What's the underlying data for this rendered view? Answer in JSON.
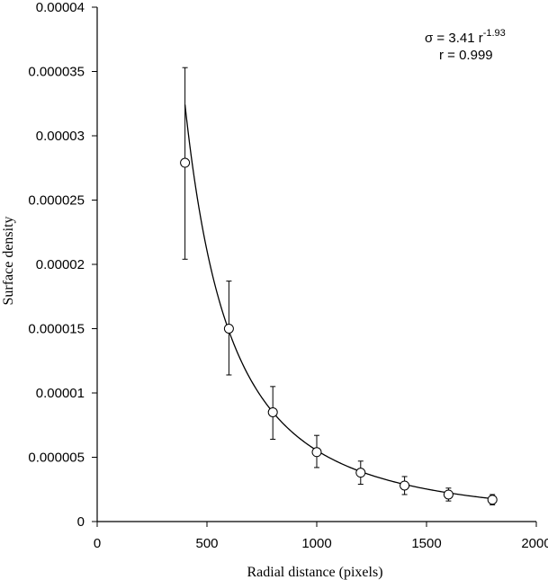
{
  "chart_data": {
    "type": "scatter",
    "title": "",
    "xlabel": "Radial distance (pixels)",
    "ylabel": "Surface density",
    "xlim": [
      0,
      2000
    ],
    "ylim": [
      0,
      4e-05
    ],
    "x_ticks": [
      0,
      500,
      1000,
      1500,
      2000
    ],
    "x_tick_labels": [
      "0",
      "500",
      "1000",
      "1500",
      "2000"
    ],
    "y_ticks": [
      0,
      5e-06,
      1e-05,
      1.5e-05,
      2e-05,
      2.5e-05,
      3e-05,
      3.5e-05,
      4e-05
    ],
    "y_tick_labels": [
      "0",
      "0.000005",
      "0.00001",
      "0.000015",
      "0.00002",
      "0.000025",
      "0.00003",
      "0.000035",
      "0.00004"
    ],
    "grid": false,
    "points": [
      {
        "x": 400,
        "y": 2.79e-05,
        "err_low": 2.04e-05,
        "err_high": 3.53e-05
      },
      {
        "x": 600,
        "y": 1.5e-05,
        "err_low": 1.14e-05,
        "err_high": 1.87e-05
      },
      {
        "x": 800,
        "y": 8.5e-06,
        "err_low": 6.4e-06,
        "err_high": 1.05e-05
      },
      {
        "x": 1000,
        "y": 5.4e-06,
        "err_low": 4.2e-06,
        "err_high": 6.7e-06
      },
      {
        "x": 1200,
        "y": 3.8e-06,
        "err_low": 2.9e-06,
        "err_high": 4.7e-06
      },
      {
        "x": 1400,
        "y": 2.8e-06,
        "err_low": 2.1e-06,
        "err_high": 3.5e-06
      },
      {
        "x": 1600,
        "y": 2.1e-06,
        "err_low": 1.6e-06,
        "err_high": 2.6e-06
      },
      {
        "x": 1800,
        "y": 1.7e-06,
        "err_low": 1.3e-06,
        "err_high": 2.1e-06
      }
    ],
    "fit": {
      "type": "power",
      "coefficient": 3.41,
      "exponent": -1.93,
      "x_range": [
        400,
        1800
      ]
    },
    "annotation": {
      "equation_prefix": "σ = 3.41 r",
      "equation_exponent": "-1.93",
      "correlation": "r = 0.999"
    }
  }
}
